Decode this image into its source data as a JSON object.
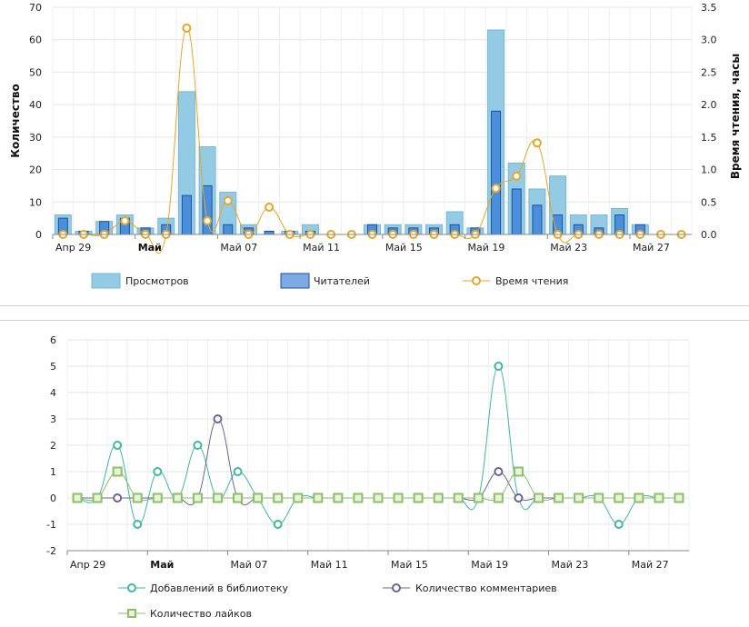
{
  "colors": {
    "views_fill": "#93cbe5",
    "views_stroke": "#7ab6d3",
    "readers_fill": "#4a8fdc",
    "readers_stroke": "#1f4f9c",
    "reading_time": "#e8a628",
    "library": "#3fb8a4",
    "comments": "#6b6498",
    "likes": "#8bbf6a",
    "likes_fill": "#e8f3d8",
    "grid": "#e6e6e6"
  },
  "chart_data": [
    {
      "type": "bar",
      "title": "",
      "ylabel": "Количество",
      "y2label": "Время чтения, часы",
      "ylim": [
        0,
        70
      ],
      "y2lim": [
        0,
        3.5
      ],
      "yticks": [
        "0",
        "10",
        "20",
        "30",
        "40",
        "50",
        "60",
        "70"
      ],
      "y2ticks": [
        "0.0",
        "0.5",
        "1.0",
        "1.5",
        "2.0",
        "2.5",
        "3.0",
        "3.5"
      ],
      "xtick_labels": [
        {
          "day": 0,
          "label": "Апр 29",
          "bold": false
        },
        {
          "day": 4,
          "label": "Май",
          "bold": true
        },
        {
          "day": 8,
          "label": "Май 07",
          "bold": false
        },
        {
          "day": 12,
          "label": "Май 11",
          "bold": false
        },
        {
          "day": 16,
          "label": "Май 15",
          "bold": false
        },
        {
          "day": 20,
          "label": "Май 19",
          "bold": false
        },
        {
          "day": 24,
          "label": "Май 23",
          "bold": false
        },
        {
          "day": 28,
          "label": "Май 27",
          "bold": false
        }
      ],
      "days": 31,
      "grid": true,
      "legend_position": "bottom",
      "series": [
        {
          "name": "Просмотров",
          "kind": "bar",
          "axis": "left",
          "values": [
            6,
            1,
            4,
            6,
            2,
            5,
            44,
            27,
            13,
            3,
            0,
            1,
            3,
            0,
            0,
            3,
            3,
            3,
            3,
            7,
            2,
            63,
            22,
            14,
            18,
            6,
            6,
            8,
            3,
            0,
            0
          ]
        },
        {
          "name": "Читателей",
          "kind": "bar",
          "axis": "left",
          "values": [
            5,
            1,
            4,
            5,
            2,
            3,
            12,
            15,
            3,
            2,
            1,
            1,
            1,
            0,
            0,
            3,
            2,
            2,
            2,
            3,
            2,
            38,
            14,
            9,
            6,
            3,
            2,
            6,
            3,
            0,
            0
          ]
        },
        {
          "name": "Время чтения",
          "kind": "line",
          "axis": "right",
          "values": [
            0,
            0,
            0,
            0.21,
            0,
            0,
            3.18,
            0.21,
            0.52,
            0,
            0.42,
            0,
            0,
            0,
            0,
            0,
            0,
            0,
            0,
            0,
            0,
            0.71,
            0.9,
            1.41,
            0,
            0,
            0,
            0,
            0,
            0,
            0
          ]
        }
      ]
    },
    {
      "type": "line",
      "title": "",
      "ylabel": "",
      "ylim": [
        -2,
        6
      ],
      "yticks": [
        "-2",
        "-1",
        "0",
        "1",
        "2",
        "3",
        "4",
        "5",
        "6"
      ],
      "xtick_labels": [
        {
          "day": 0,
          "label": "Апр 29",
          "bold": false
        },
        {
          "day": 4,
          "label": "Май",
          "bold": true
        },
        {
          "day": 8,
          "label": "Май 07",
          "bold": false
        },
        {
          "day": 12,
          "label": "Май 11",
          "bold": false
        },
        {
          "day": 16,
          "label": "Май 15",
          "bold": false
        },
        {
          "day": 20,
          "label": "Май 19",
          "bold": false
        },
        {
          "day": 24,
          "label": "Май 23",
          "bold": false
        },
        {
          "day": 28,
          "label": "Май 27",
          "bold": false
        }
      ],
      "days": 31,
      "grid": true,
      "legend_position": "bottom",
      "series": [
        {
          "name": "Добавлений в библиотеку",
          "marker": "circle",
          "values": [
            0,
            0,
            2,
            -1,
            1,
            0,
            2,
            0,
            1,
            0,
            -1,
            0,
            0,
            0,
            0,
            0,
            0,
            0,
            0,
            0,
            0,
            5,
            0,
            0,
            0,
            0,
            0,
            -1,
            0,
            0,
            0
          ]
        },
        {
          "name": "Количество комментариев",
          "marker": "circle",
          "values": [
            0,
            0,
            0,
            0,
            0,
            0,
            0,
            3,
            0,
            0,
            0,
            0,
            0,
            0,
            0,
            0,
            0,
            0,
            0,
            0,
            0,
            1,
            0,
            0,
            0,
            0,
            0,
            0,
            0,
            0,
            0
          ]
        },
        {
          "name": "Количество лайков",
          "marker": "square",
          "values": [
            0,
            0,
            1,
            0,
            0,
            0,
            0,
            0,
            0,
            0,
            0,
            0,
            0,
            0,
            0,
            0,
            0,
            0,
            0,
            0,
            0,
            0,
            1,
            0,
            0,
            0,
            0,
            0,
            0,
            0,
            0
          ]
        }
      ]
    }
  ]
}
